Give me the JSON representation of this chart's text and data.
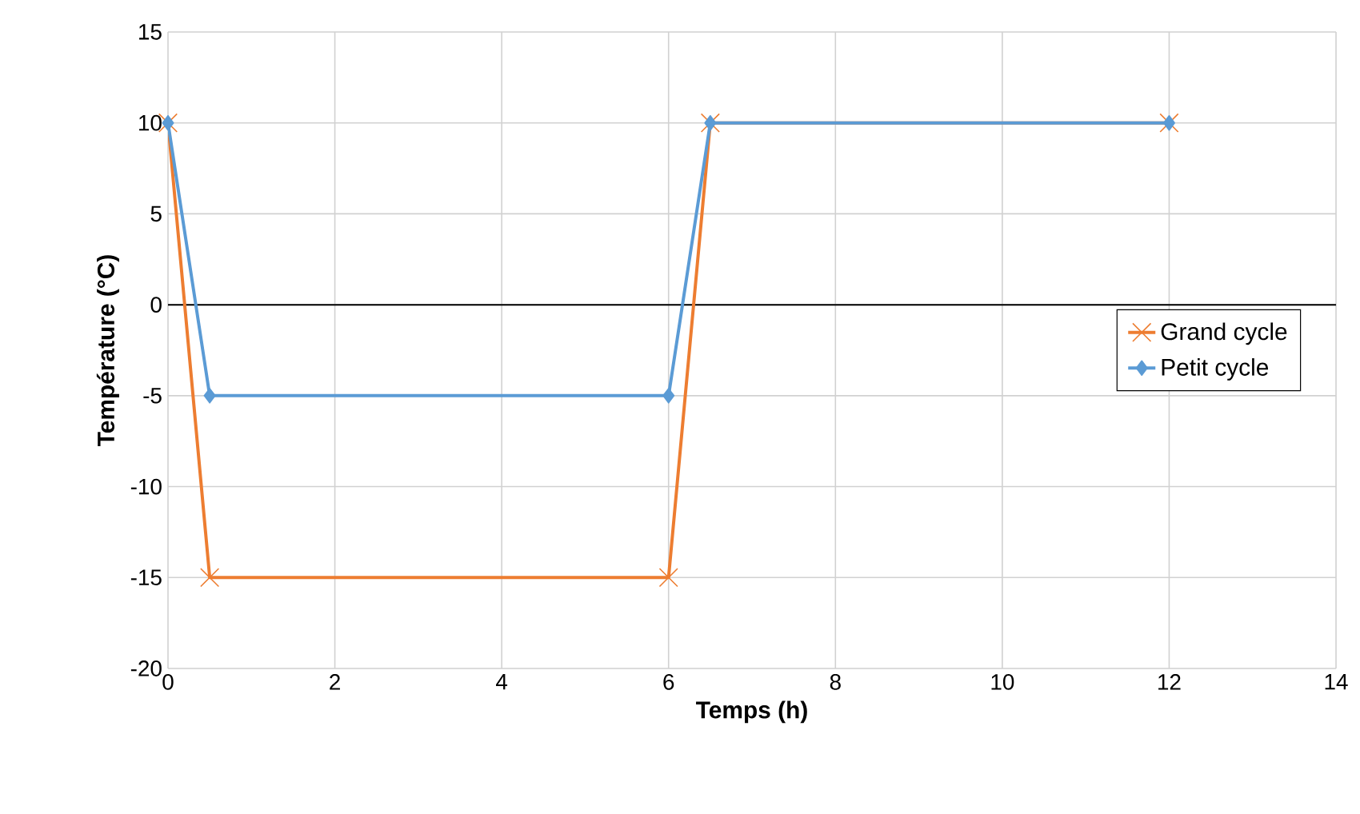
{
  "chart_data": {
    "type": "line",
    "xlabel": "Temps (h)",
    "ylabel": "Température (°C)",
    "xlim": [
      0,
      14
    ],
    "xticks": [
      0,
      2,
      4,
      6,
      8,
      10,
      12,
      14
    ],
    "ylim": [
      -20,
      15
    ],
    "yticks": [
      -20,
      -15,
      -10,
      -5,
      0,
      5,
      10,
      15
    ],
    "grid": true,
    "legend": "right",
    "line_style": "solid",
    "ref_lines": [
      {
        "axis": "y",
        "value": 0,
        "color": "#000000"
      }
    ],
    "series": [
      {
        "name": "Grand cycle",
        "color": "#ed7d31",
        "marker": "cross",
        "x": [
          0,
          0.5,
          6,
          6.5,
          12
        ],
        "values": [
          10,
          -15,
          -15,
          10,
          10
        ]
      },
      {
        "name": "Petit cycle",
        "color": "#5b9bd5",
        "marker": "diamond",
        "x": [
          0,
          0.5,
          6,
          6.5,
          12
        ],
        "values": [
          10,
          -5,
          -5,
          10,
          10
        ]
      }
    ]
  }
}
